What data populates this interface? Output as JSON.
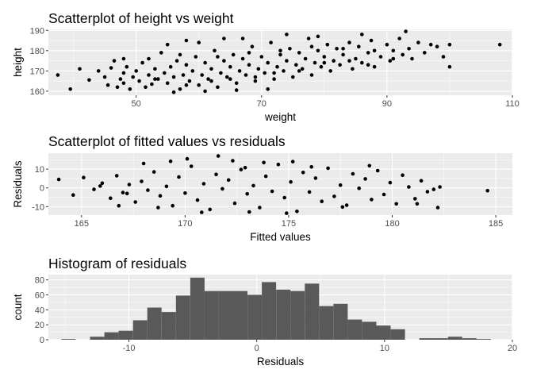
{
  "chart_data": [
    {
      "type": "scatter",
      "title": "Scatterplot of height vs weight",
      "xlabel": "weight",
      "ylabel": "height",
      "xlim": [
        36,
        110
      ],
      "ylim": [
        158,
        190.5
      ],
      "x_ticks": [
        50,
        70,
        90,
        110
      ],
      "y_ticks": [
        160,
        170,
        180,
        190
      ],
      "grid": true,
      "points": [
        [
          37.5,
          168
        ],
        [
          39.5,
          161
        ],
        [
          41,
          171
        ],
        [
          42.5,
          165.5
        ],
        [
          44,
          170
        ],
        [
          45,
          167
        ],
        [
          45.5,
          163
        ],
        [
          46,
          171.5
        ],
        [
          46.5,
          175
        ],
        [
          47,
          162
        ],
        [
          47.5,
          166
        ],
        [
          48,
          169
        ],
        [
          48.5,
          172
        ],
        [
          48,
          164
        ],
        [
          49,
          161
        ],
        [
          49.5,
          167
        ],
        [
          50,
          170
        ],
        [
          50.5,
          165
        ],
        [
          51,
          174
        ],
        [
          51.5,
          162
        ],
        [
          52,
          168
        ],
        [
          52.5,
          163.5
        ],
        [
          53,
          171
        ],
        [
          53.5,
          166
        ],
        [
          54,
          179
        ],
        [
          54.5,
          169
        ],
        [
          55,
          164
        ],
        [
          55.5,
          172
        ],
        [
          56,
          167
        ],
        [
          56.5,
          175
        ],
        [
          57,
          161
        ],
        [
          57.5,
          168
        ],
        [
          58,
          173
        ],
        [
          58.5,
          165
        ],
        [
          59,
          170
        ],
        [
          59.5,
          177
        ],
        [
          60,
          163
        ],
        [
          60.5,
          168
        ],
        [
          61,
          174
        ],
        [
          61.5,
          166
        ],
        [
          62,
          171
        ],
        [
          62.5,
          180
        ],
        [
          63,
          162
        ],
        [
          63.5,
          169
        ],
        [
          64,
          175
        ],
        [
          64.5,
          167
        ],
        [
          65,
          172
        ],
        [
          65.5,
          178
        ],
        [
          66,
          164
        ],
        [
          66.5,
          170
        ],
        [
          67,
          176
        ],
        [
          67.5,
          168
        ],
        [
          68,
          173
        ],
        [
          68.5,
          182
        ],
        [
          69,
          165
        ],
        [
          69.5,
          171
        ],
        [
          70,
          177
        ],
        [
          70.5,
          169
        ],
        [
          71,
          174
        ],
        [
          71.5,
          184
        ],
        [
          72,
          166
        ],
        [
          72.5,
          172
        ],
        [
          73,
          178
        ],
        [
          73.5,
          170
        ],
        [
          74,
          175
        ],
        [
          74.5,
          181
        ],
        [
          75,
          167
        ],
        [
          75.5,
          173
        ],
        [
          76,
          179
        ],
        [
          76.5,
          171
        ],
        [
          77,
          176
        ],
        [
          77.5,
          186
        ],
        [
          78,
          168
        ],
        [
          78.5,
          174
        ],
        [
          79,
          180
        ],
        [
          79.5,
          172
        ],
        [
          80,
          177
        ],
        [
          80.5,
          183
        ],
        [
          81,
          170
        ],
        [
          81.5,
          175
        ],
        [
          82,
          181
        ],
        [
          82.5,
          173
        ],
        [
          83,
          178
        ],
        [
          84,
          184
        ],
        [
          84.5,
          171
        ],
        [
          85,
          176
        ],
        [
          85.5,
          182
        ],
        [
          86,
          174
        ],
        [
          87,
          179
        ],
        [
          87.5,
          185
        ],
        [
          88,
          172
        ],
        [
          89,
          177
        ],
        [
          90,
          183
        ],
        [
          90.5,
          175
        ],
        [
          91,
          180
        ],
        [
          92,
          186
        ],
        [
          92.5,
          178
        ],
        [
          93,
          189.5
        ],
        [
          93.5,
          181
        ],
        [
          94,
          176
        ],
        [
          95,
          184
        ],
        [
          96,
          179
        ],
        [
          97,
          183
        ],
        [
          98,
          182
        ],
        [
          99,
          177
        ],
        [
          100,
          172
        ],
        [
          100,
          183
        ],
        [
          108,
          183
        ],
        [
          55,
          183
        ],
        [
          58,
          185
        ],
        [
          60,
          184
        ],
        [
          64,
          186
        ],
        [
          67,
          186
        ],
        [
          74,
          188
        ],
        [
          79,
          187
        ],
        [
          86,
          188
        ],
        [
          56,
          159.5
        ],
        [
          61,
          160
        ],
        [
          66,
          160.5
        ],
        [
          71,
          161
        ],
        [
          52,
          176
        ],
        [
          57,
          178
        ],
        [
          63,
          177
        ],
        [
          68,
          179
        ],
        [
          73,
          180
        ],
        [
          78,
          182
        ],
        [
          83,
          181
        ],
        [
          88,
          180
        ],
        [
          48,
          176
        ],
        [
          53,
          166
        ],
        [
          58,
          163
        ],
        [
          62,
          165
        ],
        [
          65,
          166
        ],
        [
          69,
          167
        ],
        [
          72,
          169
        ],
        [
          76,
          170
        ],
        [
          80,
          174
        ],
        [
          84,
          175
        ],
        [
          87,
          173
        ],
        [
          91,
          176
        ]
      ]
    },
    {
      "type": "scatter",
      "title": "Scatterplot of fitted values vs residuals",
      "xlabel": "Fitted values",
      "ylabel": "Residuals",
      "xlim": [
        163.4,
        185.8
      ],
      "ylim": [
        -14.5,
        18.5
      ],
      "x_ticks": [
        165,
        170,
        175,
        180,
        185
      ],
      "y_ticks": [
        -10,
        0,
        10
      ],
      "grid": true,
      "points": [
        [
          163.9,
          4.5
        ],
        [
          164.6,
          -3.8
        ],
        [
          165.1,
          5.5
        ],
        [
          165.6,
          -0.8
        ],
        [
          166.0,
          2.5
        ],
        [
          166.4,
          -5.5
        ],
        [
          166.7,
          6.5
        ],
        [
          167.0,
          -2.5
        ],
        [
          167.3,
          1.8
        ],
        [
          167.6,
          -7.5
        ],
        [
          167.9,
          3.5
        ],
        [
          168.2,
          -1.2
        ],
        [
          168.5,
          8.5
        ],
        [
          168.8,
          -4.2
        ],
        [
          169.1,
          0.8
        ],
        [
          169.4,
          -9.5
        ],
        [
          169.7,
          5.8
        ],
        [
          170.0,
          -2.8
        ],
        [
          170.3,
          11.5
        ],
        [
          170.6,
          -6.5
        ],
        [
          170.9,
          2.2
        ],
        [
          171.2,
          -11.5
        ],
        [
          171.5,
          7.2
        ],
        [
          171.8,
          -0.5
        ],
        [
          172.1,
          4.2
        ],
        [
          172.4,
          -8.2
        ],
        [
          172.7,
          9.8
        ],
        [
          173.0,
          -3.2
        ],
        [
          173.3,
          1.2
        ],
        [
          173.6,
          -10.5
        ],
        [
          173.9,
          6.2
        ],
        [
          174.2,
          -1.8
        ],
        [
          174.5,
          12.5
        ],
        [
          174.8,
          -5.2
        ],
        [
          175.1,
          3.2
        ],
        [
          175.4,
          -12.5
        ],
        [
          175.7,
          8.2
        ],
        [
          176.0,
          -2.2
        ],
        [
          176.3,
          5.2
        ],
        [
          176.6,
          -7.2
        ],
        [
          176.9,
          10.5
        ],
        [
          177.2,
          -4.5
        ],
        [
          177.5,
          1.5
        ],
        [
          177.8,
          -9.2
        ],
        [
          178.1,
          7.5
        ],
        [
          178.4,
          -0.2
        ],
        [
          178.7,
          4.8
        ],
        [
          179.0,
          -6.2
        ],
        [
          179.3,
          9.2
        ],
        [
          179.6,
          -3.5
        ],
        [
          179.9,
          2.8
        ],
        [
          180.2,
          -8.5
        ],
        [
          180.5,
          6.8
        ],
        [
          180.8,
          0.5
        ],
        [
          181.1,
          -5.8
        ],
        [
          181.4,
          3.8
        ],
        [
          181.7,
          -2.0
        ],
        [
          182.0,
          -0.8
        ],
        [
          182.2,
          -10.5
        ],
        [
          182.3,
          0.5
        ],
        [
          184.6,
          -1.5
        ],
        [
          181.2,
          -8.5
        ],
        [
          170.1,
          15.5
        ],
        [
          171.6,
          17.0
        ],
        [
          172.3,
          14.5
        ],
        [
          168.0,
          13.0
        ],
        [
          169.3,
          14.2
        ],
        [
          173.8,
          13.5
        ],
        [
          175.2,
          14.0
        ],
        [
          170.8,
          -13.0
        ],
        [
          173.1,
          -12.8
        ],
        [
          174.9,
          -13.5
        ],
        [
          166.8,
          -9.5
        ],
        [
          168.7,
          -10.5
        ],
        [
          172.9,
          10.8
        ],
        [
          176.1,
          11.2
        ],
        [
          177.6,
          -10.2
        ],
        [
          178.9,
          11.8
        ],
        [
          165.9,
          1.0
        ],
        [
          167.2,
          -3.0
        ]
      ]
    },
    {
      "type": "bar",
      "title": "Histogram of residuals",
      "xlabel": "Residuals",
      "ylabel": "count",
      "xlim": [
        -16.3,
        20
      ],
      "ylim": [
        0,
        87
      ],
      "x_ticks": [
        -10,
        0,
        10,
        20
      ],
      "y_ticks": [
        0,
        20,
        40,
        60,
        80
      ],
      "grid": true,
      "bin_width": 1.12,
      "bin_starts": [
        -15.28,
        -14.16,
        -13.04,
        -11.92,
        -10.8,
        -9.68,
        -8.56,
        -7.44,
        -6.32,
        -5.2,
        -4.08,
        -2.96,
        -1.84,
        -0.72,
        0.4,
        1.52,
        2.64,
        3.76,
        4.88,
        6.0,
        7.12,
        8.24,
        9.36,
        10.48,
        11.6,
        12.72,
        13.84,
        14.96,
        16.08,
        17.2
      ],
      "values": [
        1,
        0,
        4,
        10,
        12,
        26,
        43,
        37,
        59,
        83,
        65,
        65,
        65,
        60,
        77,
        67,
        65,
        75,
        45,
        48,
        27,
        24,
        19,
        14,
        0,
        2,
        2,
        4,
        2,
        1
      ]
    }
  ]
}
